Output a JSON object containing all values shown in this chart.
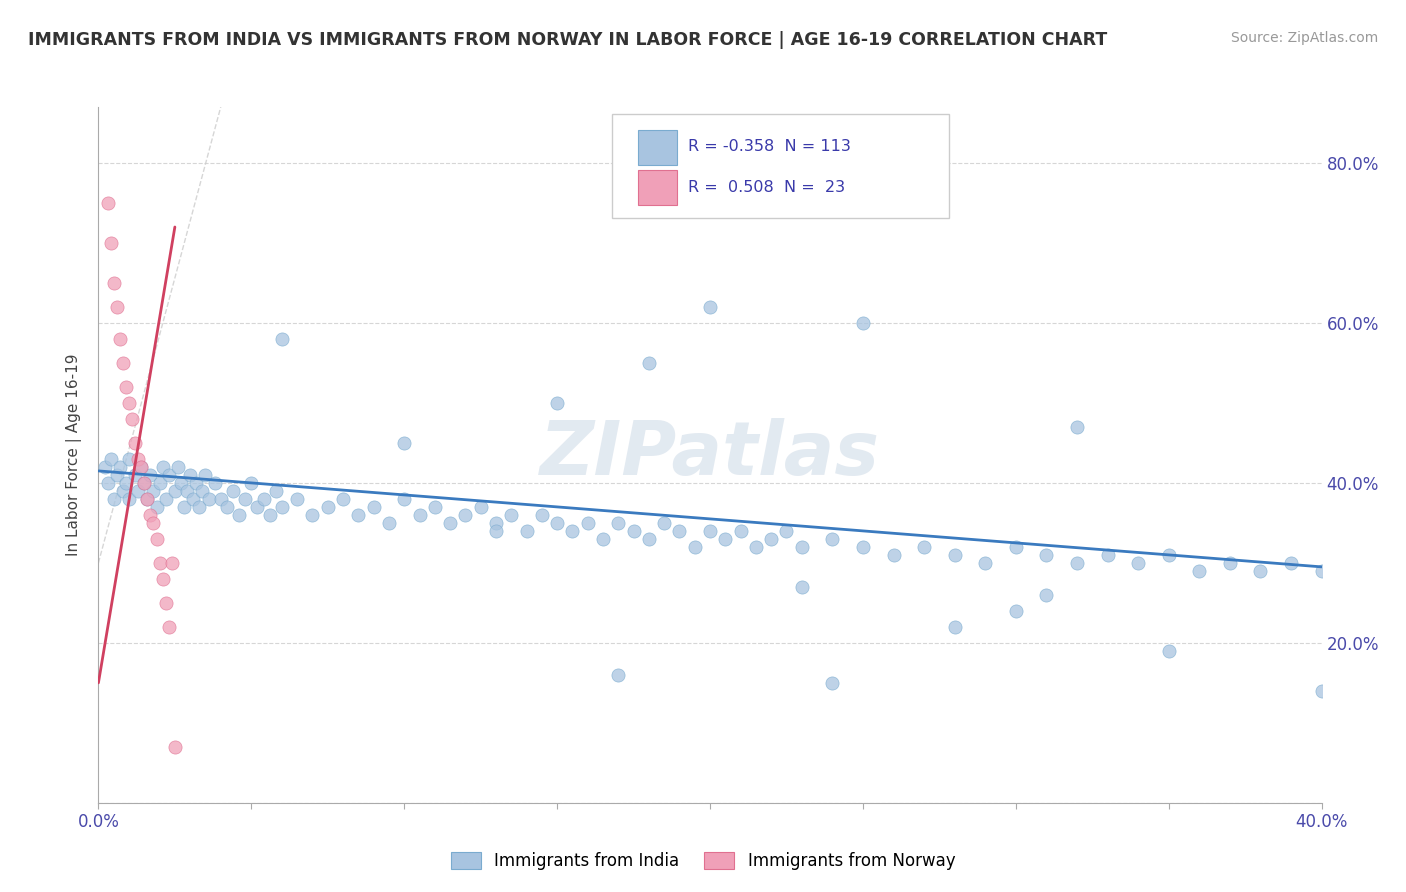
{
  "title": "IMMIGRANTS FROM INDIA VS IMMIGRANTS FROM NORWAY IN LABOR FORCE | AGE 16-19 CORRELATION CHART",
  "source": "Source: ZipAtlas.com",
  "ylabel": "In Labor Force | Age 16-19",
  "xlim": [
    0.0,
    0.4
  ],
  "ylim": [
    0.0,
    0.87
  ],
  "india_color": "#a8c4e0",
  "norway_color": "#f0a0b8",
  "india_edge_color": "#7aabcf",
  "norway_edge_color": "#e07090",
  "india_line_color": "#3a7abf",
  "norway_line_color": "#d04060",
  "india_R": -0.358,
  "india_N": 113,
  "norway_R": 0.508,
  "norway_N": 23,
  "watermark": "ZIPatlas",
  "legend_india": "Immigrants from India",
  "legend_norway": "Immigrants from Norway",
  "india_scatter_x": [
    0.002,
    0.003,
    0.004,
    0.005,
    0.006,
    0.007,
    0.008,
    0.009,
    0.01,
    0.01,
    0.012,
    0.013,
    0.014,
    0.015,
    0.016,
    0.017,
    0.018,
    0.019,
    0.02,
    0.021,
    0.022,
    0.023,
    0.025,
    0.026,
    0.027,
    0.028,
    0.029,
    0.03,
    0.031,
    0.032,
    0.033,
    0.034,
    0.035,
    0.036,
    0.038,
    0.04,
    0.042,
    0.044,
    0.046,
    0.048,
    0.05,
    0.052,
    0.054,
    0.056,
    0.058,
    0.06,
    0.065,
    0.07,
    0.075,
    0.08,
    0.085,
    0.09,
    0.095,
    0.1,
    0.105,
    0.11,
    0.115,
    0.12,
    0.125,
    0.13,
    0.135,
    0.14,
    0.145,
    0.15,
    0.155,
    0.16,
    0.165,
    0.17,
    0.175,
    0.18,
    0.185,
    0.19,
    0.195,
    0.2,
    0.205,
    0.21,
    0.215,
    0.22,
    0.225,
    0.23,
    0.24,
    0.25,
    0.26,
    0.27,
    0.28,
    0.29,
    0.3,
    0.31,
    0.32,
    0.33,
    0.34,
    0.35,
    0.36,
    0.37,
    0.38,
    0.39,
    0.4,
    0.25,
    0.18,
    0.32,
    0.15,
    0.28,
    0.06,
    0.1,
    0.2,
    0.35,
    0.23,
    0.17,
    0.3,
    0.13,
    0.24,
    0.31,
    0.4
  ],
  "india_scatter_y": [
    0.42,
    0.4,
    0.43,
    0.38,
    0.41,
    0.42,
    0.39,
    0.4,
    0.43,
    0.38,
    0.41,
    0.39,
    0.42,
    0.4,
    0.38,
    0.41,
    0.39,
    0.37,
    0.4,
    0.42,
    0.38,
    0.41,
    0.39,
    0.42,
    0.4,
    0.37,
    0.39,
    0.41,
    0.38,
    0.4,
    0.37,
    0.39,
    0.41,
    0.38,
    0.4,
    0.38,
    0.37,
    0.39,
    0.36,
    0.38,
    0.4,
    0.37,
    0.38,
    0.36,
    0.39,
    0.37,
    0.38,
    0.36,
    0.37,
    0.38,
    0.36,
    0.37,
    0.35,
    0.38,
    0.36,
    0.37,
    0.35,
    0.36,
    0.37,
    0.35,
    0.36,
    0.34,
    0.36,
    0.35,
    0.34,
    0.35,
    0.33,
    0.35,
    0.34,
    0.33,
    0.35,
    0.34,
    0.32,
    0.34,
    0.33,
    0.34,
    0.32,
    0.33,
    0.34,
    0.32,
    0.33,
    0.32,
    0.31,
    0.32,
    0.31,
    0.3,
    0.32,
    0.31,
    0.3,
    0.31,
    0.3,
    0.31,
    0.29,
    0.3,
    0.29,
    0.3,
    0.29,
    0.6,
    0.55,
    0.47,
    0.5,
    0.22,
    0.58,
    0.45,
    0.62,
    0.19,
    0.27,
    0.16,
    0.24,
    0.34,
    0.15,
    0.26,
    0.14
  ],
  "norway_scatter_x": [
    0.003,
    0.004,
    0.005,
    0.006,
    0.007,
    0.008,
    0.009,
    0.01,
    0.011,
    0.012,
    0.013,
    0.014,
    0.015,
    0.016,
    0.017,
    0.018,
    0.019,
    0.02,
    0.021,
    0.022,
    0.023,
    0.024,
    0.025
  ],
  "norway_scatter_y": [
    0.75,
    0.7,
    0.65,
    0.62,
    0.58,
    0.55,
    0.52,
    0.5,
    0.48,
    0.45,
    0.43,
    0.42,
    0.4,
    0.38,
    0.36,
    0.35,
    0.33,
    0.3,
    0.28,
    0.25,
    0.22,
    0.3,
    0.07
  ],
  "india_trend_x": [
    0.0,
    0.4
  ],
  "india_trend_y": [
    0.415,
    0.295
  ],
  "norway_trend_x": [
    0.0,
    0.025
  ],
  "norway_trend_y": [
    0.15,
    0.72
  ]
}
